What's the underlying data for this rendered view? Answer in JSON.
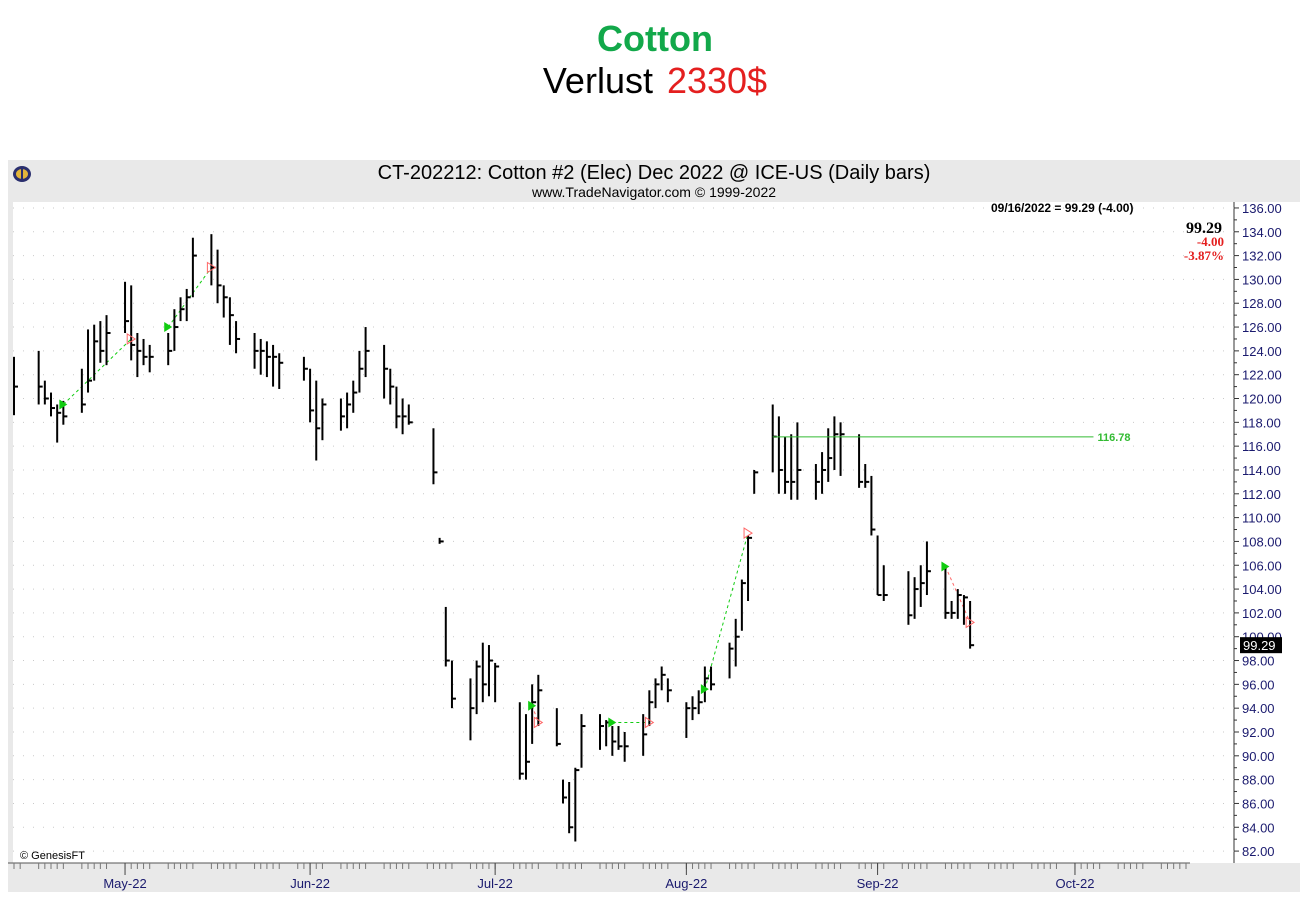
{
  "header": {
    "title": "Cotton",
    "loss_label": "Verlust",
    "loss_amount": "2330$"
  },
  "chart_header": {
    "title": "CT-202212:  Cotton #2 (Elec) Dec 2022 @ ICE-US  (Daily bars)",
    "subtitle": "www.TradeNavigator.com © 1999-2022",
    "credit": "© GenesisFT"
  },
  "colors": {
    "bar": "#000000",
    "axis_text": "#1a1a6e",
    "buy": "#11cc11",
    "sell": "#ff6666",
    "level": "#33bb33",
    "loss": "#e41f1f",
    "title": "#12a84a"
  },
  "chart_data": {
    "type": "ohlc",
    "title": "CT-202212:  Cotton #2 (Elec) Dec 2022 @ ICE-US  (Daily bars)",
    "ylim": [
      81,
      136.5
    ],
    "y_ticks": [
      "136.00",
      "134.00",
      "132.00",
      "130.00",
      "128.00",
      "126.00",
      "124.00",
      "122.00",
      "120.00",
      "118.00",
      "116.00",
      "114.00",
      "112.00",
      "110.00",
      "108.00",
      "106.00",
      "104.00",
      "102.00",
      "100.00",
      "98.00",
      "96.00",
      "94.00",
      "92.00",
      "90.00",
      "88.00",
      "86.00",
      "84.00",
      "82.00"
    ],
    "x_month_labels": [
      {
        "label": "May-22",
        "date": "2022-05-02"
      },
      {
        "label": "Jun-22",
        "date": "2022-06-01"
      },
      {
        "label": "Jul-22",
        "date": "2022-07-01"
      },
      {
        "label": "Aug-22",
        "date": "2022-08-01"
      },
      {
        "label": "Sep-22",
        "date": "2022-09-01"
      },
      {
        "label": "Oct-22",
        "date": "2022-10-03"
      }
    ],
    "x_range": [
      "2022-04-14",
      "2022-10-21"
    ],
    "bars": [
      {
        "date": "2022-04-14",
        "h": 123.5,
        "l": 118.6,
        "c": 121
      },
      {
        "date": "2022-04-18",
        "h": 124.0,
        "l": 119.5,
        "c": 121
      },
      {
        "date": "2022-04-19",
        "h": 121.5,
        "l": 119.5,
        "c": 120
      },
      {
        "date": "2022-04-20",
        "h": 120.5,
        "l": 118.5,
        "c": 119.2
      },
      {
        "date": "2022-04-21",
        "h": 119.5,
        "l": 116.3,
        "c": 118.8
      },
      {
        "date": "2022-04-22",
        "h": 119.8,
        "l": 117.8,
        "c": 118.5
      },
      {
        "date": "2022-04-25",
        "h": 122.5,
        "l": 118.8,
        "c": 119.5
      },
      {
        "date": "2022-04-26",
        "h": 125.8,
        "l": 120.5,
        "c": 121.5
      },
      {
        "date": "2022-04-27",
        "h": 126.2,
        "l": 121.5,
        "c": 124.8
      },
      {
        "date": "2022-04-28",
        "h": 126.5,
        "l": 123.0,
        "c": 124.0
      },
      {
        "date": "2022-04-29",
        "h": 127.0,
        "l": 122.8,
        "c": 125.5
      },
      {
        "date": "2022-05-02",
        "h": 129.8,
        "l": 125.5,
        "c": 126.5
      },
      {
        "date": "2022-05-03",
        "h": 129.5,
        "l": 123.2,
        "c": 124.5
      },
      {
        "date": "2022-05-04",
        "h": 125.5,
        "l": 121.8,
        "c": 124.0
      },
      {
        "date": "2022-05-05",
        "h": 125.0,
        "l": 122.8,
        "c": 123.5
      },
      {
        "date": "2022-05-06",
        "h": 124.5,
        "l": 122.2,
        "c": 123.5
      },
      {
        "date": "2022-05-09",
        "h": 125.5,
        "l": 122.8,
        "c": 124.0
      },
      {
        "date": "2022-05-10",
        "h": 127.5,
        "l": 124.0,
        "c": 126.0
      },
      {
        "date": "2022-05-11",
        "h": 128.5,
        "l": 126.5,
        "c": 127.5
      },
      {
        "date": "2022-05-12",
        "h": 129.2,
        "l": 126.5,
        "c": 128.5
      },
      {
        "date": "2022-05-13",
        "h": 133.5,
        "l": 128.5,
        "c": 132.0
      },
      {
        "date": "2022-05-16",
        "h": 133.8,
        "l": 129.5,
        "c": 131.0
      },
      {
        "date": "2022-05-17",
        "h": 132.5,
        "l": 128.0,
        "c": 129.5
      },
      {
        "date": "2022-05-18",
        "h": 129.5,
        "l": 126.8,
        "c": 128.5
      },
      {
        "date": "2022-05-19",
        "h": 128.5,
        "l": 124.5,
        "c": 127.0
      },
      {
        "date": "2022-05-20",
        "h": 126.5,
        "l": 123.8,
        "c": 125.0
      },
      {
        "date": "2022-05-23",
        "h": 125.5,
        "l": 122.5,
        "c": 124.0
      },
      {
        "date": "2022-05-24",
        "h": 125.0,
        "l": 122.0,
        "c": 124.0
      },
      {
        "date": "2022-05-25",
        "h": 124.8,
        "l": 121.8,
        "c": 123.5
      },
      {
        "date": "2022-05-26",
        "h": 124.5,
        "l": 121.0,
        "c": 123.5
      },
      {
        "date": "2022-05-27",
        "h": 123.8,
        "l": 120.8,
        "c": 123.0
      },
      {
        "date": "2022-05-31",
        "h": 123.5,
        "l": 121.5,
        "c": 122.5
      },
      {
        "date": "2022-06-01",
        "h": 122.5,
        "l": 118.0,
        "c": 119.0
      },
      {
        "date": "2022-06-02",
        "h": 121.5,
        "l": 114.8,
        "c": 117.5
      },
      {
        "date": "2022-06-03",
        "h": 120.0,
        "l": 116.5,
        "c": 119.5
      },
      {
        "date": "2022-06-06",
        "h": 120.0,
        "l": 117.3,
        "c": 118.5
      },
      {
        "date": "2022-06-07",
        "h": 120.5,
        "l": 117.5,
        "c": 119.5
      },
      {
        "date": "2022-06-08",
        "h": 121.5,
        "l": 118.8,
        "c": 120.5
      },
      {
        "date": "2022-06-09",
        "h": 124.0,
        "l": 120.5,
        "c": 122.5
      },
      {
        "date": "2022-06-10",
        "h": 126.0,
        "l": 121.8,
        "c": 124.0
      },
      {
        "date": "2022-06-13",
        "h": 124.5,
        "l": 120.0,
        "c": 122.5
      },
      {
        "date": "2022-06-14",
        "h": 122.5,
        "l": 119.5,
        "c": 121.0
      },
      {
        "date": "2022-06-15",
        "h": 121.0,
        "l": 117.5,
        "c": 118.5
      },
      {
        "date": "2022-06-16",
        "h": 120.0,
        "l": 117.0,
        "c": 118.5
      },
      {
        "date": "2022-06-17",
        "h": 119.5,
        "l": 117.8,
        "c": 118.0
      },
      {
        "date": "2022-06-21",
        "h": 117.5,
        "l": 112.8,
        "c": 113.8
      },
      {
        "date": "2022-06-22",
        "h": 108.3,
        "l": 107.8,
        "c": 108.0
      },
      {
        "date": "2022-06-23",
        "h": 102.5,
        "l": 97.5,
        "c": 98.0
      },
      {
        "date": "2022-06-24",
        "h": 98.0,
        "l": 94.0,
        "c": 94.8
      },
      {
        "date": "2022-06-27",
        "h": 96.5,
        "l": 91.3,
        "c": 94.0
      },
      {
        "date": "2022-06-28",
        "h": 98.0,
        "l": 93.5,
        "c": 97.5
      },
      {
        "date": "2022-06-29",
        "h": 99.5,
        "l": 94.5,
        "c": 96.0
      },
      {
        "date": "2022-06-30",
        "h": 99.3,
        "l": 95.0,
        "c": 98.0
      },
      {
        "date": "2022-07-01",
        "h": 97.8,
        "l": 94.5,
        "c": 97.5
      },
      {
        "date": "2022-07-05",
        "h": 94.5,
        "l": 88.0,
        "c": 88.5
      },
      {
        "date": "2022-07-06",
        "h": 93.5,
        "l": 88.0,
        "c": 89.5
      },
      {
        "date": "2022-07-07",
        "h": 96.0,
        "l": 91.0,
        "c": 94.5
      },
      {
        "date": "2022-07-08",
        "h": 96.8,
        "l": 92.5,
        "c": 95.5
      },
      {
        "date": "2022-07-11",
        "h": 94.0,
        "l": 90.8,
        "c": 91.0
      },
      {
        "date": "2022-07-12",
        "h": 88.0,
        "l": 86.0,
        "c": 86.5
      },
      {
        "date": "2022-07-13",
        "h": 87.8,
        "l": 83.5,
        "c": 84.0
      },
      {
        "date": "2022-07-14",
        "h": 89.0,
        "l": 82.8,
        "c": 88.8
      },
      {
        "date": "2022-07-15",
        "h": 93.5,
        "l": 89.0,
        "c": 92.5
      },
      {
        "date": "2022-07-18",
        "h": 93.5,
        "l": 90.5,
        "c": 92.5
      },
      {
        "date": "2022-07-19",
        "h": 93.0,
        "l": 90.8,
        "c": 92.8
      },
      {
        "date": "2022-07-20",
        "h": 92.5,
        "l": 90.0,
        "c": 91.2
      },
      {
        "date": "2022-07-21",
        "h": 92.5,
        "l": 90.5,
        "c": 90.8
      },
      {
        "date": "2022-07-22",
        "h": 92.0,
        "l": 89.5,
        "c": 90.8
      },
      {
        "date": "2022-07-25",
        "h": 93.5,
        "l": 90.0,
        "c": 91.8
      },
      {
        "date": "2022-07-26",
        "h": 95.5,
        "l": 92.5,
        "c": 94.5
      },
      {
        "date": "2022-07-27",
        "h": 96.5,
        "l": 94.0,
        "c": 96.0
      },
      {
        "date": "2022-07-28",
        "h": 97.5,
        "l": 95.5,
        "c": 96.8
      },
      {
        "date": "2022-07-29",
        "h": 96.5,
        "l": 94.5,
        "c": 95.5
      },
      {
        "date": "2022-08-01",
        "h": 94.5,
        "l": 91.5,
        "c": 94.0
      },
      {
        "date": "2022-08-02",
        "h": 95.0,
        "l": 93.0,
        "c": 94.0
      },
      {
        "date": "2022-08-03",
        "h": 95.5,
        "l": 93.5,
        "c": 94.5
      },
      {
        "date": "2022-08-04",
        "h": 97.5,
        "l": 94.5,
        "c": 96.5
      },
      {
        "date": "2022-08-05",
        "h": 97.5,
        "l": 95.5,
        "c": 96.0
      },
      {
        "date": "2022-08-08",
        "h": 99.5,
        "l": 96.5,
        "c": 99.0
      },
      {
        "date": "2022-08-09",
        "h": 101.5,
        "l": 97.5,
        "c": 100.0
      },
      {
        "date": "2022-08-10",
        "h": 104.8,
        "l": 100.5,
        "c": 104.5
      },
      {
        "date": "2022-08-11",
        "h": 108.5,
        "l": 103.0,
        "c": 108.3
      },
      {
        "date": "2022-08-12",
        "h": 114.0,
        "l": 112.0,
        "c": 113.8
      },
      {
        "date": "2022-08-15",
        "h": 119.5,
        "l": 113.8,
        "c": 116.8
      },
      {
        "date": "2022-08-16",
        "h": 118.5,
        "l": 112.0,
        "c": 114.0
      },
      {
        "date": "2022-08-17",
        "h": 116.8,
        "l": 112.0,
        "c": 113.0
      },
      {
        "date": "2022-08-18",
        "h": 117.0,
        "l": 111.5,
        "c": 113.0
      },
      {
        "date": "2022-08-19",
        "h": 118.0,
        "l": 111.5,
        "c": 114.0
      },
      {
        "date": "2022-08-22",
        "h": 114.5,
        "l": 111.5,
        "c": 113.0
      },
      {
        "date": "2022-08-23",
        "h": 115.5,
        "l": 112.0,
        "c": 114.0
      },
      {
        "date": "2022-08-24",
        "h": 117.5,
        "l": 113.0,
        "c": 115.0
      },
      {
        "date": "2022-08-25",
        "h": 118.5,
        "l": 114.0,
        "c": 117.0
      },
      {
        "date": "2022-08-26",
        "h": 118.0,
        "l": 113.5,
        "c": 117.0
      },
      {
        "date": "2022-08-29",
        "h": 117.0,
        "l": 112.5,
        "c": 113.0
      },
      {
        "date": "2022-08-30",
        "h": 114.5,
        "l": 112.5,
        "c": 113.0
      },
      {
        "date": "2022-08-31",
        "h": 113.5,
        "l": 108.5,
        "c": 109.0
      },
      {
        "date": "2022-09-01",
        "h": 108.5,
        "l": 103.5,
        "c": 103.5
      },
      {
        "date": "2022-09-02",
        "h": 106.0,
        "l": 103.0,
        "c": 103.5
      },
      {
        "date": "2022-09-06",
        "h": 105.5,
        "l": 101.0,
        "c": 101.8
      },
      {
        "date": "2022-09-07",
        "h": 105.0,
        "l": 101.5,
        "c": 104.0
      },
      {
        "date": "2022-09-08",
        "h": 106.0,
        "l": 102.5,
        "c": 104.5
      },
      {
        "date": "2022-09-09",
        "h": 108.0,
        "l": 103.5,
        "c": 105.5
      },
      {
        "date": "2022-09-12",
        "h": 106.0,
        "l": 101.5,
        "c": 102.0
      },
      {
        "date": "2022-09-13",
        "h": 103.0,
        "l": 101.5,
        "c": 102.0
      },
      {
        "date": "2022-09-14",
        "h": 104.0,
        "l": 101.5,
        "c": 103.5
      },
      {
        "date": "2022-09-15",
        "h": 103.5,
        "l": 101.0,
        "c": 103.3
      },
      {
        "date": "2022-09-16",
        "h": 103.0,
        "l": 99.0,
        "c": 99.29
      }
    ],
    "signals": [
      {
        "date": "2022-04-22",
        "price": 119.5,
        "type": "buy"
      },
      {
        "date": "2022-05-03",
        "price": 125.0,
        "type": "sell"
      },
      {
        "date": "2022-05-09",
        "price": 126.0,
        "type": "buy"
      },
      {
        "date": "2022-05-16",
        "price": 131.0,
        "type": "sell"
      },
      {
        "date": "2022-07-07",
        "price": 94.2,
        "type": "buy"
      },
      {
        "date": "2022-07-08",
        "price": 92.8,
        "type": "sell"
      },
      {
        "date": "2022-07-20",
        "price": 92.8,
        "type": "buy"
      },
      {
        "date": "2022-07-26",
        "price": 92.8,
        "type": "sell"
      },
      {
        "date": "2022-08-04",
        "price": 95.6,
        "type": "buy"
      },
      {
        "date": "2022-08-11",
        "price": 108.7,
        "type": "sell"
      },
      {
        "date": "2022-09-12",
        "price": 105.9,
        "type": "buy"
      },
      {
        "date": "2022-09-16",
        "price": 101.2,
        "type": "sell"
      }
    ],
    "level_line": {
      "value": 116.78,
      "label": "116.78",
      "from": "2022-08-15",
      "to": "2022-10-06"
    },
    "last": {
      "info": "09/16/2022 = 99.29 (-4.00)",
      "price": "99.29",
      "change": "-4.00",
      "pct": "-3.87%",
      "value": 99.29
    }
  }
}
